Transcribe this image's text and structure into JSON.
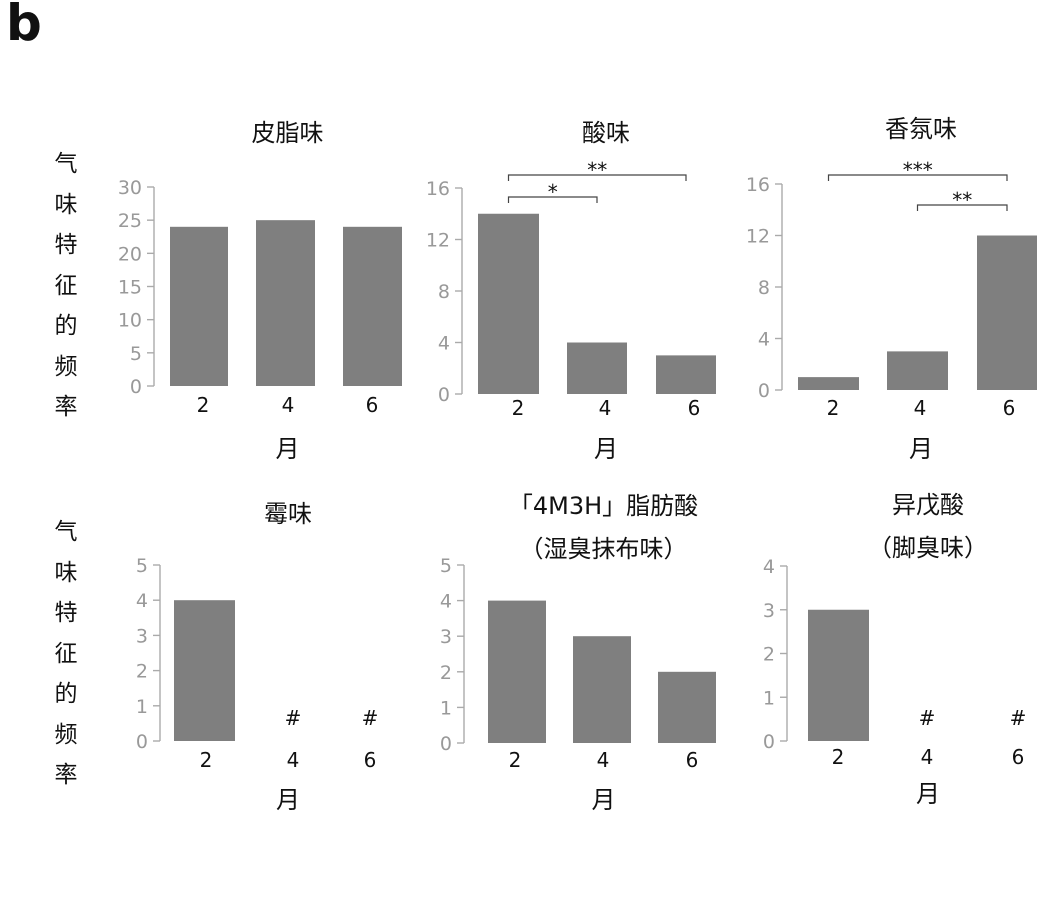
{
  "panel_label": "b",
  "ylabel_chars": [
    "气",
    "味",
    "特",
    "征",
    "的",
    "频",
    "率"
  ],
  "chart_data": [
    {
      "type": "bar",
      "title": "皮脂味",
      "subtitle": "",
      "categories": [
        "2",
        "4",
        "6"
      ],
      "values": [
        24,
        25,
        24
      ],
      "ylim": [
        0,
        30
      ],
      "yticks": [
        0,
        5,
        10,
        15,
        20,
        25,
        30
      ],
      "xlabel": "月",
      "ylabel": "气味特征的频率",
      "markers": [
        "",
        "",
        ""
      ],
      "significance": [],
      "bar_color": "#7f7f7f",
      "grid": false,
      "legend": "none"
    },
    {
      "type": "bar",
      "title": "酸味",
      "subtitle": "",
      "categories": [
        "2",
        "4",
        "6"
      ],
      "values": [
        14,
        4,
        3
      ],
      "ylim": [
        0,
        16
      ],
      "yticks": [
        0,
        4,
        8,
        12,
        16
      ],
      "xlabel": "月",
      "ylabel": "",
      "markers": [
        "",
        "",
        ""
      ],
      "significance": [
        {
          "from": "2",
          "to": "6",
          "label": "**"
        },
        {
          "from": "2",
          "to": "4",
          "label": "*"
        }
      ],
      "bar_color": "#7f7f7f",
      "grid": false,
      "legend": "none"
    },
    {
      "type": "bar",
      "title": "香氛味",
      "subtitle": "",
      "categories": [
        "2",
        "4",
        "6"
      ],
      "values": [
        1,
        3,
        12
      ],
      "ylim": [
        0,
        16
      ],
      "yticks": [
        0,
        4,
        8,
        12,
        16
      ],
      "xlabel": "月",
      "ylabel": "",
      "markers": [
        "",
        "",
        ""
      ],
      "significance": [
        {
          "from": "2",
          "to": "6",
          "label": "***"
        },
        {
          "from": "4",
          "to": "6",
          "label": "**"
        }
      ],
      "bar_color": "#7f7f7f",
      "grid": false,
      "legend": "none"
    },
    {
      "type": "bar",
      "title": "霉味",
      "subtitle": "",
      "categories": [
        "2",
        "4",
        "6"
      ],
      "values": [
        4,
        0,
        0
      ],
      "ylim": [
        0,
        5
      ],
      "yticks": [
        0,
        1,
        2,
        3,
        4,
        5
      ],
      "xlabel": "月",
      "ylabel": "气味特征的频率",
      "markers": [
        "",
        "#",
        "#"
      ],
      "significance": [],
      "bar_color": "#7f7f7f",
      "grid": false,
      "legend": "none"
    },
    {
      "type": "bar",
      "title": "「4M3H」脂肪酸",
      "subtitle": "（湿臭抹布味）",
      "categories": [
        "2",
        "4",
        "6"
      ],
      "values": [
        4,
        3,
        2
      ],
      "ylim": [
        0,
        5
      ],
      "yticks": [
        0,
        1,
        2,
        3,
        4,
        5
      ],
      "xlabel": "月",
      "ylabel": "",
      "markers": [
        "",
        "",
        ""
      ],
      "significance": [],
      "bar_color": "#7f7f7f",
      "grid": false,
      "legend": "none"
    },
    {
      "type": "bar",
      "title": "异戊酸",
      "subtitle": "（脚臭味）",
      "categories": [
        "2",
        "4",
        "6"
      ],
      "values": [
        3,
        0,
        0
      ],
      "ylim": [
        0,
        4
      ],
      "yticks": [
        0,
        1,
        2,
        3,
        4
      ],
      "xlabel": "月",
      "ylabel": "",
      "markers": [
        "",
        "#",
        "#"
      ],
      "significance": [],
      "bar_color": "#7f7f7f",
      "grid": false,
      "legend": "none"
    }
  ]
}
